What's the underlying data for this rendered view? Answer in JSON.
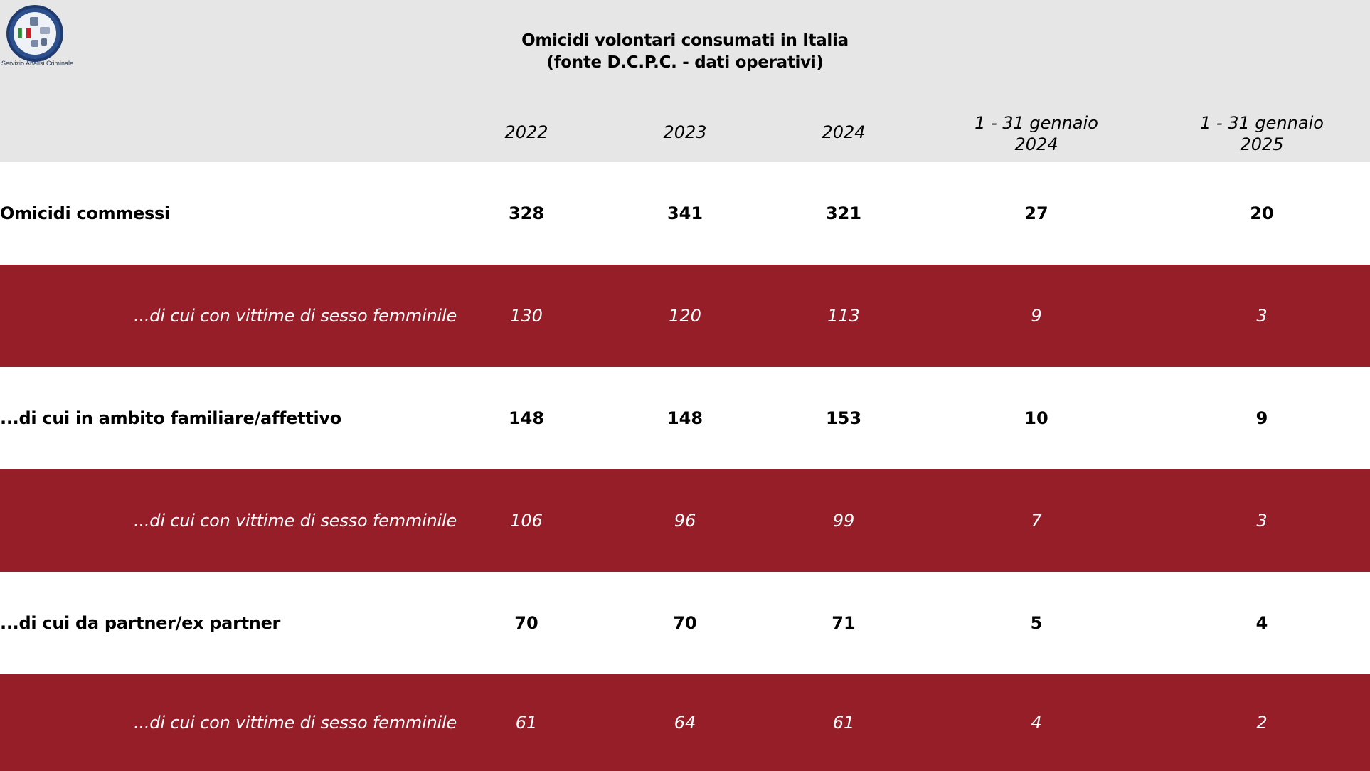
{
  "header": {
    "logo_caption": "Servizio Analisi Criminale",
    "title_line1": "Omicidi volontari consumati in Italia",
    "title_line2": "(fonte D.C.P.C. - dati operativi)"
  },
  "columns": [
    {
      "line1": "",
      "line2": "2022"
    },
    {
      "line1": "",
      "line2": "2023"
    },
    {
      "line1": "",
      "line2": "2024"
    },
    {
      "line1": "1 - 31 gennaio",
      "line2": "2024"
    },
    {
      "line1": "1 - 31 gennaio",
      "line2": "2025"
    }
  ],
  "rows": [
    {
      "label": "Omicidi commessi",
      "values": [
        "328",
        "341",
        "321",
        "27",
        "20"
      ]
    },
    {
      "label": "...di cui con vittime di sesso femminile",
      "values": [
        "130",
        "120",
        "113",
        "9",
        "3"
      ]
    },
    {
      "label": "...di cui in ambito familiare/affettivo",
      "values": [
        "148",
        "148",
        "153",
        "10",
        "9"
      ]
    },
    {
      "label": "...di cui con vittime di sesso femminile",
      "values": [
        "106",
        "96",
        "99",
        "7",
        "3"
      ]
    },
    {
      "label": "...di cui da partner/ex partner",
      "values": [
        "70",
        "70",
        "71",
        "5",
        "4"
      ]
    },
    {
      "label": "...di cui con vittime di sesso femminile",
      "values": [
        "61",
        "64",
        "61",
        "4",
        "2"
      ]
    }
  ],
  "colors": {
    "header_bg": "#e6e6e6",
    "highlight_row_bg": "#961e29",
    "highlight_row_text": "#ffffff"
  }
}
